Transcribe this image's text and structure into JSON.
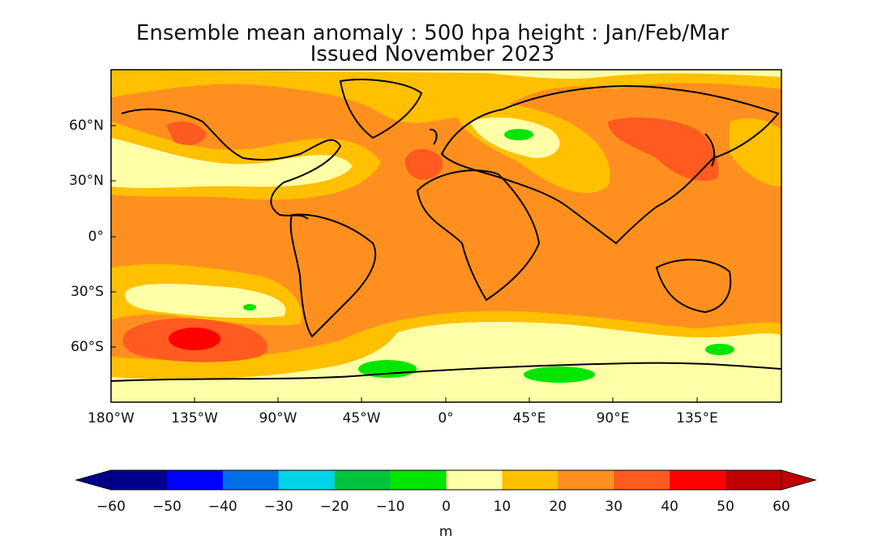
{
  "title_line1": "Ensemble mean anomaly : 500 hpa height : Jan/Feb/Mar",
  "title_line2": "Issued November 2023",
  "map": {
    "lon_range": [
      -180,
      180
    ],
    "lat_range": [
      -90,
      90
    ],
    "y_ticks": [
      "60°N",
      "30°N",
      "0°",
      "30°S",
      "60°S"
    ],
    "x_ticks": [
      "180°W",
      "135°W",
      "90°W",
      "45°W",
      "0°",
      "45°E",
      "90°E",
      "135°E"
    ]
  },
  "colorbar": {
    "unit": "m",
    "ticks": [
      "−60",
      "−50",
      "−40",
      "−30",
      "−20",
      "−10",
      "0",
      "10",
      "20",
      "30",
      "40",
      "50",
      "60"
    ],
    "colors": [
      "#00008f",
      "#0000ff",
      "#0070e8",
      "#00d4e6",
      "#00c43c",
      "#00e600",
      "#ffffa8",
      "#ffc000",
      "#ff9020",
      "#ff5a20",
      "#ff0000",
      "#c00000"
    ]
  }
}
